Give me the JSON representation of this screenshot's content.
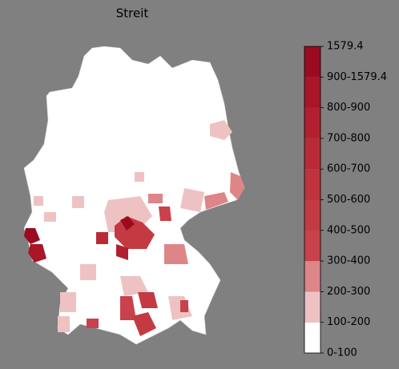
{
  "title": "Streit",
  "colorbar": {
    "labels": [
      "0-100",
      "100-200",
      "200-300",
      "300-400",
      "400-500",
      "500-600",
      "600-700",
      "700-800",
      "800-900",
      "900-1579.4",
      "1579.4"
    ],
    "colors": [
      "#ffffff",
      "#eec2c3",
      "#dd8587",
      "#c9414a",
      "#c43a43",
      "#bf333d",
      "#b92a36",
      "#b2202f",
      "#a81627",
      "#9b0b20"
    ]
  }
}
